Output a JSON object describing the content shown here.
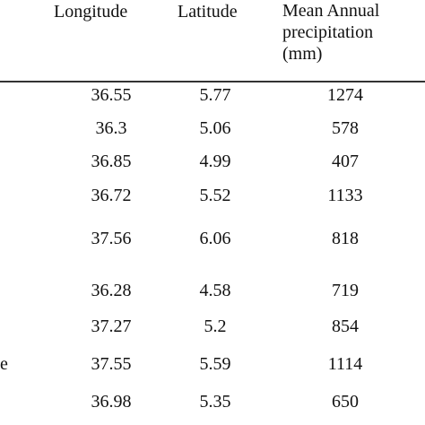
{
  "table": {
    "headers": {
      "longitude": "Longitude",
      "latitude": "Latitude",
      "precip_line1": "Mean Annual",
      "precip_line2": "precipitation",
      "precip_line3": "(mm)"
    },
    "rows": [
      {
        "name": "",
        "longitude": "36.55",
        "latitude": "5.77",
        "precipitation": "1274"
      },
      {
        "name": "",
        "longitude": "36.3",
        "latitude": "5.06",
        "precipitation": "578"
      },
      {
        "name": "",
        "longitude": "36.85",
        "latitude": "4.99",
        "precipitation": "407"
      },
      {
        "name": "",
        "longitude": "36.72",
        "latitude": "5.52",
        "precipitation": "1133"
      },
      {
        "name": "",
        "longitude": "37.56",
        "latitude": "6.06",
        "precipitation": "818"
      },
      {
        "name": "",
        "longitude": "36.28",
        "latitude": "4.58",
        "precipitation": "719"
      },
      {
        "name": "",
        "longitude": "37.27",
        "latitude": "5.2",
        "precipitation": "854"
      },
      {
        "name": "e",
        "longitude": "37.55",
        "latitude": "5.59",
        "precipitation": "1114"
      },
      {
        "name": "",
        "longitude": "36.98",
        "latitude": "5.35",
        "precipitation": "650"
      }
    ]
  }
}
